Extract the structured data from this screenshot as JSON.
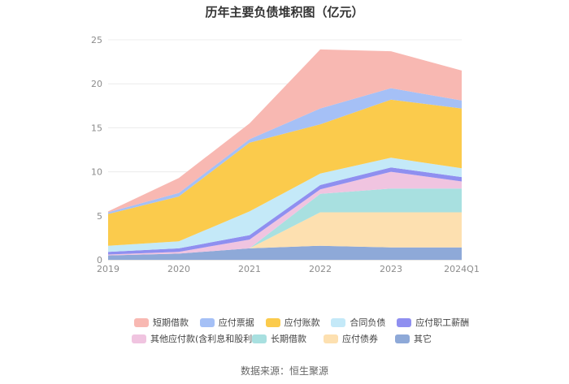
{
  "chart_data": {
    "type": "area",
    "stacked": true,
    "title": "历年主要负债堆积图（亿元）",
    "categories": [
      "2019",
      "2020",
      "2021",
      "2022",
      "2023",
      "2024Q1"
    ],
    "y_ticks": [
      0,
      5,
      10,
      15,
      20,
      25
    ],
    "ylim": [
      0,
      25
    ],
    "grid": true,
    "legend_position": "bottom",
    "series": [
      {
        "name": "其它",
        "color": "#8ea9d8",
        "values": [
          0.5,
          0.7,
          1.3,
          1.6,
          1.4,
          1.4
        ]
      },
      {
        "name": "应付债券",
        "color": "#fde0b0",
        "values": [
          0.0,
          0.0,
          0.0,
          3.8,
          4.0,
          4.0
        ]
      },
      {
        "name": "长期借款",
        "color": "#a8e0e0",
        "values": [
          0.0,
          0.0,
          0.0,
          2.1,
          2.7,
          2.7
        ]
      },
      {
        "name": "其他应付款(含利息和股利)",
        "color": "#f0c4e0",
        "values": [
          0.1,
          0.2,
          1.0,
          0.5,
          1.9,
          0.8
        ]
      },
      {
        "name": "应付职工薪酬",
        "color": "#8f8ff0",
        "values": [
          0.3,
          0.4,
          0.5,
          0.5,
          0.5,
          0.5
        ]
      },
      {
        "name": "合同负债",
        "color": "#c4e9f8",
        "values": [
          0.7,
          0.8,
          2.7,
          1.3,
          1.1,
          1.0
        ]
      },
      {
        "name": "应付账款",
        "color": "#fbcb4c",
        "values": [
          3.6,
          5.1,
          7.8,
          5.6,
          6.6,
          6.8
        ]
      },
      {
        "name": "应付票据",
        "color": "#a5c0f6",
        "values": [
          0.2,
          0.4,
          0.4,
          1.8,
          1.3,
          0.9
        ]
      },
      {
        "name": "短期借款",
        "color": "#f8b8b2",
        "values": [
          0.1,
          1.7,
          1.8,
          6.7,
          4.2,
          3.4
        ]
      }
    ],
    "legend_order": [
      "短期借款",
      "应付票据",
      "应付账款",
      "合同负债",
      "应付职工薪酬",
      "其他应付款(含利息和股利)",
      "长期借款",
      "应付债券",
      "其它"
    ]
  },
  "source_text": "数据来源：恒生聚源"
}
